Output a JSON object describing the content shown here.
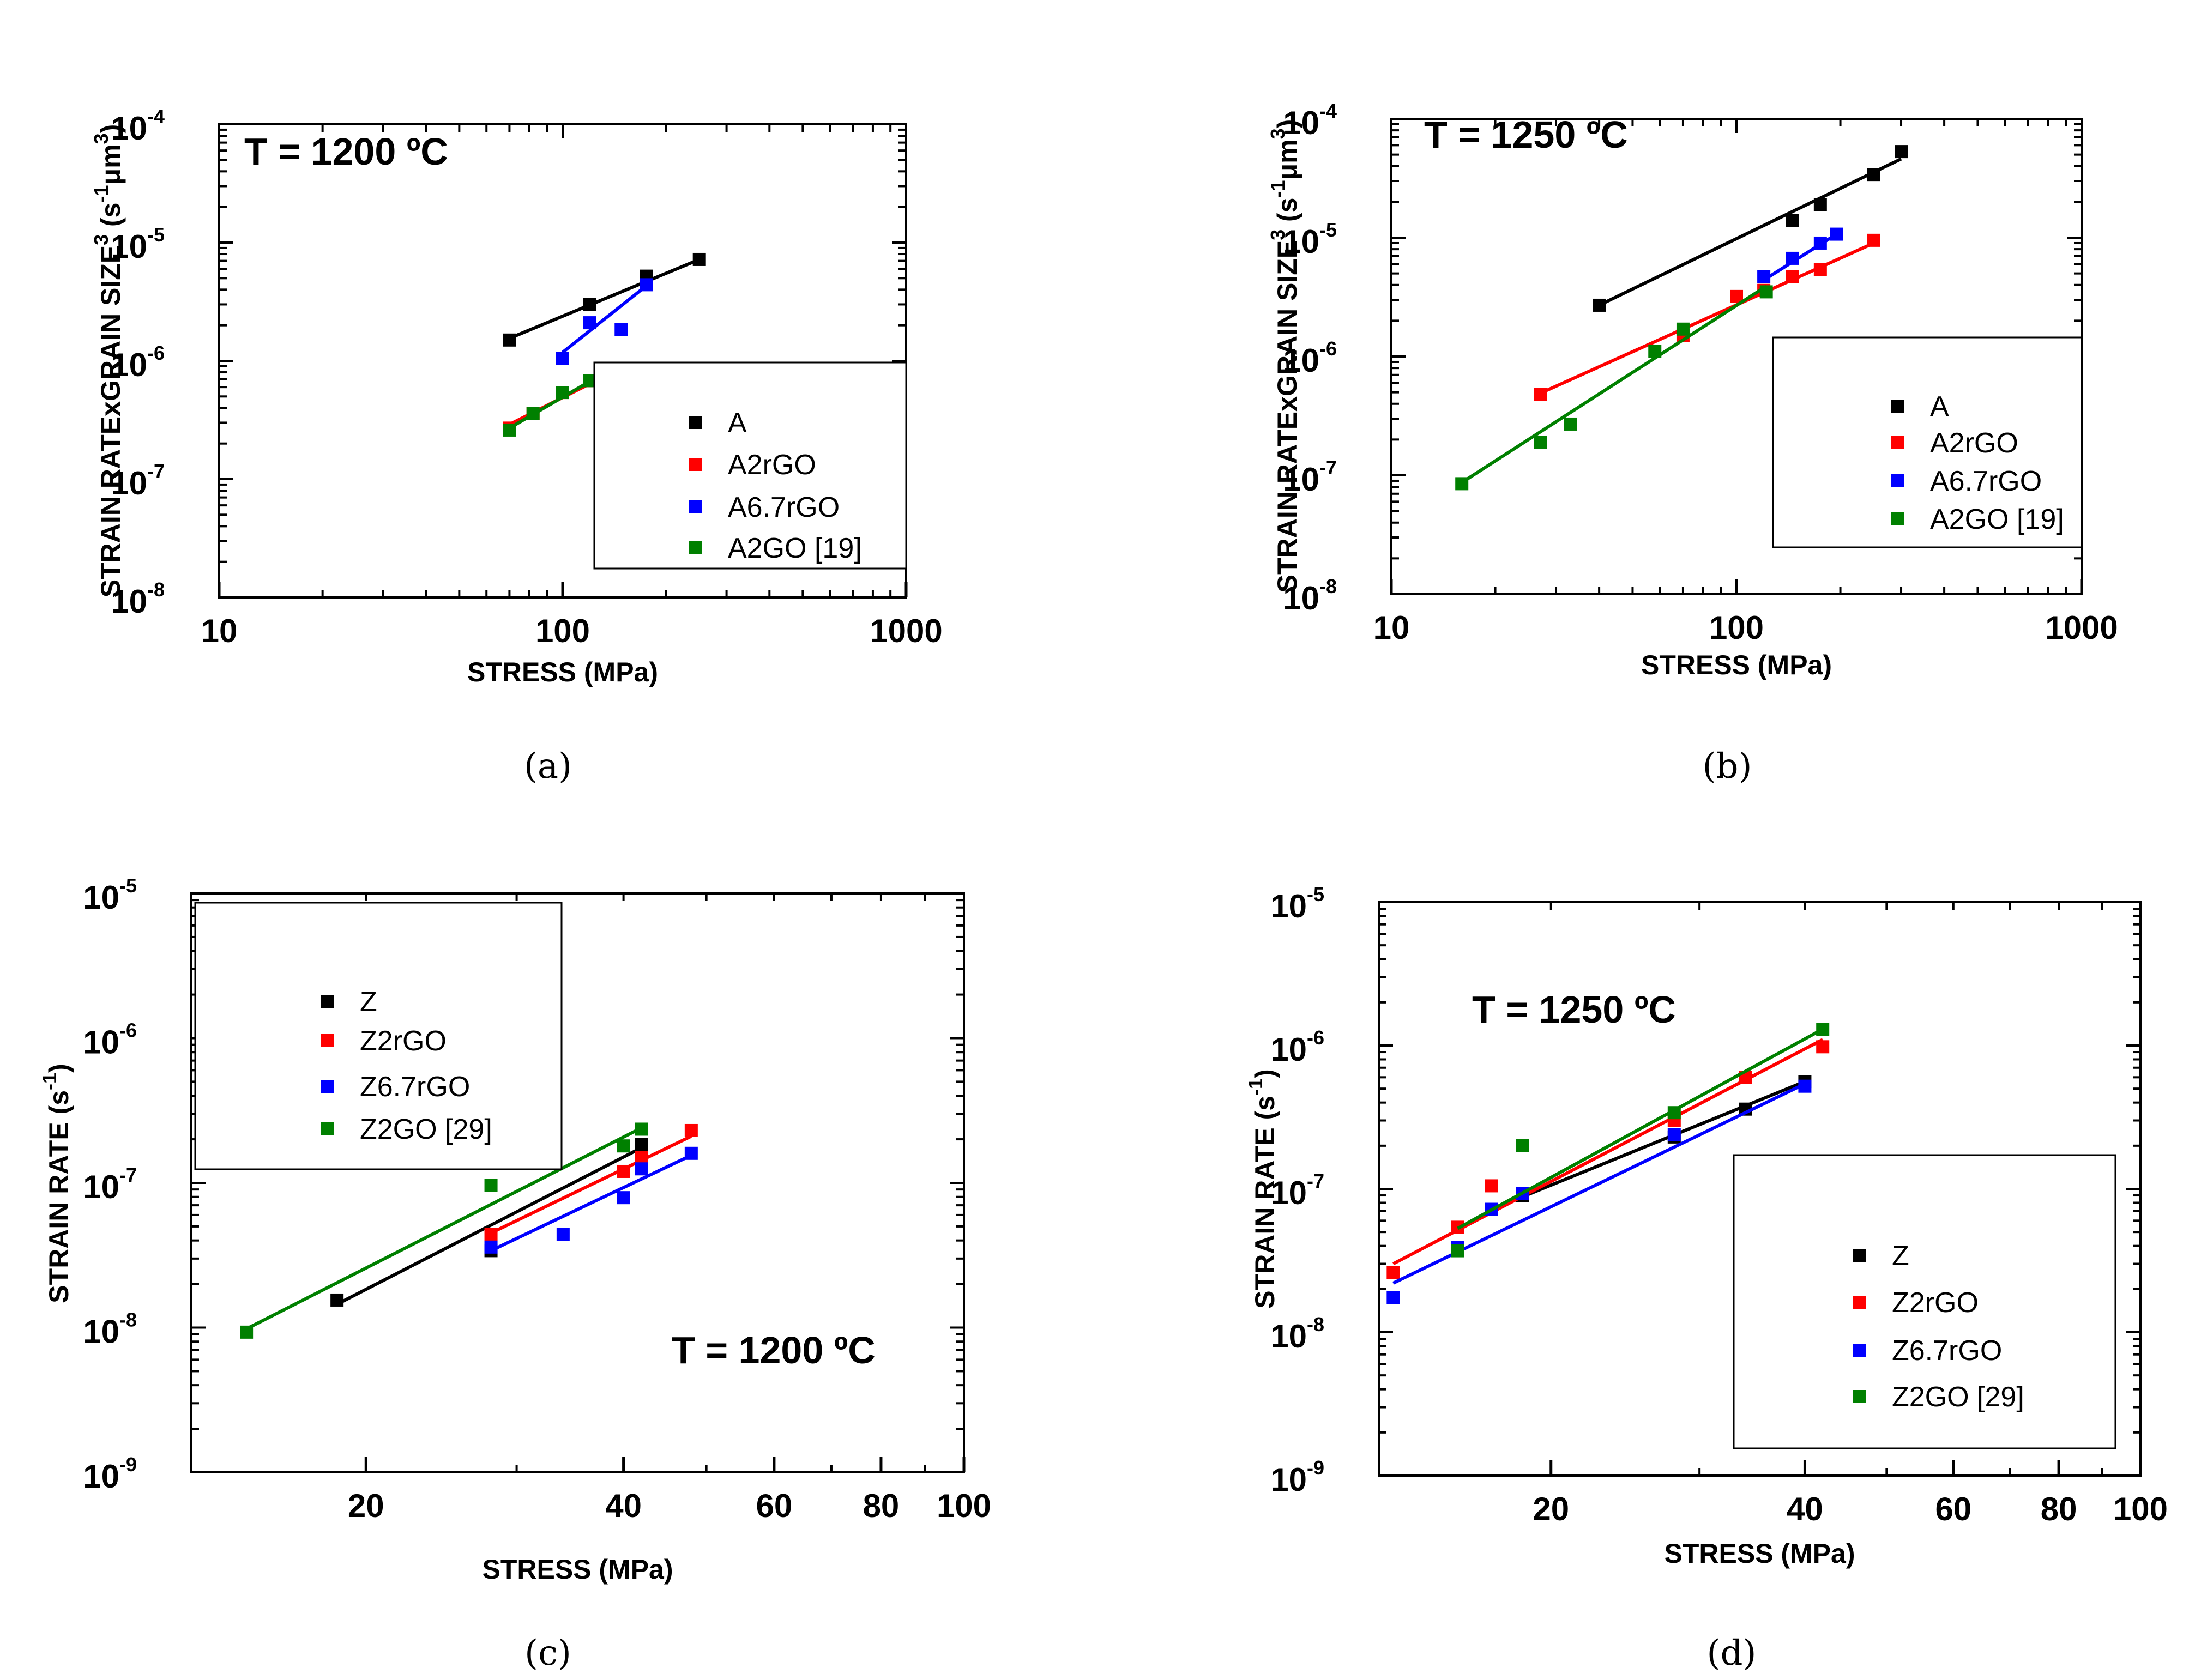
{
  "captions": [
    "(a)",
    "(b)",
    "(c)",
    "(d)"
  ],
  "chart_data": [
    {
      "panel": "(a)",
      "type": "scatter",
      "annotation": "T = 1200 ºC",
      "xlabel": "STRESS (MPa)",
      "ylabel_main": "STRAIN RATExGRAIN SIZE",
      "ylabel_sup": "3",
      "ylabel_unit": " (s",
      "ylabel_unit_sup": "-1",
      "ylabel_unit2": "μm",
      "ylabel_unit2_sup": "3",
      "ylabel_close": ")",
      "xscale": "log",
      "yscale": "log",
      "xlim": [
        10,
        1000
      ],
      "ylim": [
        1e-08,
        0.0001
      ],
      "xticks": [
        {
          "v": 10,
          "label": "10"
        },
        {
          "v": 100,
          "label": "100"
        },
        {
          "v": 1000,
          "label": "1000"
        }
      ],
      "yticks": [
        {
          "e": -8,
          "base": "10",
          "sup": "-8"
        },
        {
          "e": -7,
          "base": "10",
          "sup": "-7"
        },
        {
          "e": -6,
          "base": "10",
          "sup": "-6"
        },
        {
          "e": -5,
          "base": "10",
          "sup": "-5"
        },
        {
          "e": -4,
          "base": "10",
          "sup": "-4"
        }
      ],
      "legend_position": "bottom-right",
      "series": [
        {
          "name": "A",
          "color": "#000000",
          "points": [
            [
              70,
              1.5e-06
            ],
            [
              120,
              3e-06
            ],
            [
              175,
              5.2e-06
            ],
            [
              250,
              7.2e-06
            ]
          ],
          "fit": [
            [
              70,
              1.55e-06
            ],
            [
              250,
              7.2e-06
            ]
          ]
        },
        {
          "name": "A2rGO",
          "color": "#ff0000",
          "points": [
            [
              70,
              2.7e-07
            ],
            [
              82,
              3.6e-07
            ],
            [
              100,
              5.4e-07
            ],
            [
              120,
              6.8e-07
            ],
            [
              148,
              8.5e-07
            ]
          ],
          "fit": [
            [
              70,
              2.9e-07
            ],
            [
              148,
              8.7e-07
            ]
          ]
        },
        {
          "name": "A6.7rGO",
          "color": "#0000ff",
          "points": [
            [
              100,
              1.05e-06
            ],
            [
              120,
              2.1e-06
            ],
            [
              148,
              1.85e-06
            ],
            [
              175,
              4.4e-06
            ]
          ],
          "fit": [
            [
              100,
              1.18e-06
            ],
            [
              175,
              4.3e-06
            ]
          ]
        },
        {
          "name": "A2GO [19]",
          "color": "#008000",
          "points": [
            [
              70,
              2.6e-07
            ],
            [
              82,
              3.6e-07
            ],
            [
              100,
              5.4e-07
            ],
            [
              120,
              6.8e-07
            ]
          ],
          "fit": [
            [
              70,
              2.7e-07
            ],
            [
              122,
              6.9e-07
            ]
          ]
        }
      ]
    },
    {
      "panel": "(b)",
      "type": "scatter",
      "annotation": "T = 1250 ºC",
      "xlabel": "STRESS (MPa)",
      "ylabel_main": "STRAIN RATExGRAIN SIZE",
      "ylabel_sup": "3",
      "ylabel_unit": " (s",
      "ylabel_unit_sup": "-1",
      "ylabel_unit2": "μm",
      "ylabel_unit2_sup": "3",
      "ylabel_close": ")",
      "xscale": "log",
      "yscale": "log",
      "xlim": [
        10,
        1000
      ],
      "ylim": [
        1e-08,
        0.0001
      ],
      "xticks": [
        {
          "v": 10,
          "label": "10"
        },
        {
          "v": 100,
          "label": "100"
        },
        {
          "v": 1000,
          "label": "1000"
        }
      ],
      "yticks": [
        {
          "e": -8,
          "base": "10",
          "sup": "-8"
        },
        {
          "e": -7,
          "base": "10",
          "sup": "-7"
        },
        {
          "e": -6,
          "base": "10",
          "sup": "-6"
        },
        {
          "e": -5,
          "base": "10",
          "sup": "-5"
        },
        {
          "e": -4,
          "base": "10",
          "sup": "-4"
        }
      ],
      "legend_position": "bottom-right",
      "series": [
        {
          "name": "A",
          "color": "#000000",
          "points": [
            [
              40,
              2.7e-06
            ],
            [
              145,
              1.4e-05
            ],
            [
              175,
              1.9e-05
            ],
            [
              250,
              3.4e-05
            ],
            [
              300,
              5.3e-05
            ]
          ],
          "fit": [
            [
              40,
              2.7e-06
            ],
            [
              300,
              4.6e-05
            ]
          ]
        },
        {
          "name": "A2rGO",
          "color": "#ff0000",
          "points": [
            [
              27,
              4.8e-07
            ],
            [
              70,
              1.5e-06
            ],
            [
              100,
              3.2e-06
            ],
            [
              120,
              3.6e-06
            ],
            [
              145,
              4.7e-06
            ],
            [
              175,
              5.4e-06
            ],
            [
              250,
              9.5e-06
            ]
          ],
          "fit": [
            [
              27,
              4.9e-07
            ],
            [
              250,
              9e-06
            ]
          ]
        },
        {
          "name": "A6.7rGO",
          "color": "#0000ff",
          "points": [
            [
              120,
              4.7e-06
            ],
            [
              145,
              6.7e-06
            ],
            [
              175,
              9e-06
            ],
            [
              195,
              1.07e-05
            ]
          ],
          "fit": [
            [
              120,
              4.4e-06
            ],
            [
              195,
              1.07e-05
            ]
          ]
        },
        {
          "name": "A2GO [19]",
          "color": "#008000",
          "points": [
            [
              16,
              8.5e-08
            ],
            [
              27,
              1.9e-07
            ],
            [
              33,
              2.7e-07
            ],
            [
              58,
              1.1e-06
            ],
            [
              70,
              1.7e-06
            ],
            [
              122,
              3.5e-06
            ]
          ],
          "fit": [
            [
              16,
              8.7e-08
            ],
            [
              122,
              3.9e-06
            ]
          ]
        }
      ]
    },
    {
      "panel": "(c)",
      "type": "scatter",
      "annotation": "T = 1200 ºC",
      "xlabel": "STRESS (MPa)",
      "ylabel_main": "STRAIN RATE (s",
      "ylabel_sup": "-1",
      "ylabel_close": ")",
      "xscale": "log",
      "yscale": "log",
      "xlim": [
        12.5,
        100
      ],
      "ylim": [
        1e-09,
        1e-05
      ],
      "xticks": [
        {
          "v": 20,
          "label": "20"
        },
        {
          "v": 40,
          "label": "40"
        },
        {
          "v": 60,
          "label": "60"
        },
        {
          "v": 80,
          "label": "80"
        },
        {
          "v": 100,
          "label": "100"
        }
      ],
      "yticks": [
        {
          "e": -9,
          "base": "10",
          "sup": "-9"
        },
        {
          "e": -8,
          "base": "10",
          "sup": "-8"
        },
        {
          "e": -7,
          "base": "10",
          "sup": "-7"
        },
        {
          "e": -6,
          "base": "10",
          "sup": "-6"
        },
        {
          "e": -5,
          "base": "10",
          "sup": "-5"
        }
      ],
      "legend_position": "top-left",
      "series": [
        {
          "name": "Z",
          "color": "#000000",
          "points": [
            [
              18.5,
              1.55e-08
            ],
            [
              28,
              3.4e-08
            ],
            [
              42,
              1.85e-07
            ]
          ],
          "fit": [
            [
              18.5,
              1.45e-08
            ],
            [
              42,
              1.75e-07
            ]
          ]
        },
        {
          "name": "Z2rGO",
          "color": "#ff0000",
          "points": [
            [
              28,
              4.4e-08
            ],
            [
              40,
              1.2e-07
            ],
            [
              42,
              1.5e-07
            ],
            [
              48,
              2.3e-07
            ]
          ],
          "fit": [
            [
              28,
              4.5e-08
            ],
            [
              48,
              2.1e-07
            ]
          ]
        },
        {
          "name": "Z6.7rGO",
          "color": "#0000ff",
          "points": [
            [
              28,
              3.6e-08
            ],
            [
              34,
              4.4e-08
            ],
            [
              40,
              7.9e-08
            ],
            [
              42,
              1.25e-07
            ],
            [
              48,
              1.6e-07
            ]
          ],
          "fit": [
            [
              28,
              3.4e-08
            ],
            [
              48,
              1.55e-07
            ]
          ]
        },
        {
          "name": "Z2GO [29]",
          "color": "#008000",
          "points": [
            [
              14.5,
              9.3e-09
            ],
            [
              28,
              9.6e-08
            ],
            [
              40,
              1.8e-07
            ],
            [
              42,
              2.35e-07
            ]
          ],
          "fit": [
            [
              14.5,
              9.8e-09
            ],
            [
              42,
              2.4e-07
            ]
          ]
        }
      ]
    },
    {
      "panel": "(d)",
      "type": "scatter",
      "annotation": "T = 1250 ºC",
      "xlabel": "STRESS (MPa)",
      "ylabel_main": "STRAIN RATE (s",
      "ylabel_sup": "-1",
      "ylabel_close": ")",
      "xscale": "log",
      "yscale": "log",
      "xlim": [
        12.5,
        100
      ],
      "ylim": [
        1e-09,
        1e-05
      ],
      "xticks": [
        {
          "v": 20,
          "label": "20"
        },
        {
          "v": 40,
          "label": "40"
        },
        {
          "v": 60,
          "label": "60"
        },
        {
          "v": 80,
          "label": "80"
        },
        {
          "v": 100,
          "label": "100"
        }
      ],
      "yticks": [
        {
          "e": -9,
          "base": "10",
          "sup": "-9"
        },
        {
          "e": -8,
          "base": "10",
          "sup": "-8"
        },
        {
          "e": -7,
          "base": "10",
          "sup": "-7"
        },
        {
          "e": -6,
          "base": "10",
          "sup": "-6"
        },
        {
          "e": -5,
          "base": "10",
          "sup": "-5"
        }
      ],
      "legend_position": "bottom-right",
      "series": [
        {
          "name": "Z",
          "color": "#000000",
          "points": [
            [
              18.5,
              9e-08
            ],
            [
              28,
              2.3e-07
            ],
            [
              34,
              3.6e-07
            ],
            [
              40,
              5.6e-07
            ]
          ],
          "fit": [
            [
              18.5,
              8.8e-08
            ],
            [
              40,
              5.6e-07
            ]
          ]
        },
        {
          "name": "Z2rGO",
          "color": "#ff0000",
          "points": [
            [
              13,
              2.6e-08
            ],
            [
              15.5,
              5.4e-08
            ],
            [
              17,
              1.05e-07
            ],
            [
              28,
              3e-07
            ],
            [
              34,
              6e-07
            ],
            [
              42,
              9.8e-07
            ]
          ],
          "fit": [
            [
              13,
              3e-08
            ],
            [
              42,
              1.1e-06
            ]
          ]
        },
        {
          "name": "Z6.7rGO",
          "color": "#0000ff",
          "points": [
            [
              13,
              1.75e-08
            ],
            [
              15.5,
              3.9e-08
            ],
            [
              17,
              7.2e-08
            ],
            [
              18.5,
              9.3e-08
            ],
            [
              28,
              2.4e-07
            ],
            [
              40,
              5.2e-07
            ]
          ],
          "fit": [
            [
              13,
              2.2e-08
            ],
            [
              40,
              5.4e-07
            ]
          ]
        },
        {
          "name": "Z2GO [29]",
          "color": "#008000",
          "points": [
            [
              15.5,
              3.7e-08
            ],
            [
              18.5,
              2e-07
            ],
            [
              28,
              3.4e-07
            ],
            [
              42,
              1.3e-06
            ]
          ],
          "fit": [
            [
              15.5,
              5.3e-08
            ],
            [
              42,
              1.3e-06
            ]
          ]
        }
      ]
    }
  ]
}
